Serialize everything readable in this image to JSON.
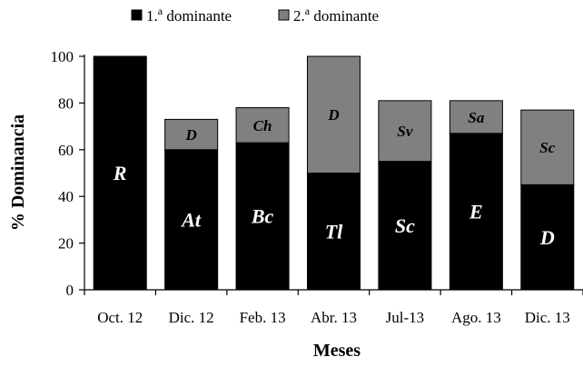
{
  "chart_data": {
    "type": "bar",
    "stacked": true,
    "categories": [
      "Oct. 12",
      "Dic. 12",
      "Feb. 13",
      "Abr. 13",
      "Jul-13",
      "Ago. 13",
      "Dic. 13"
    ],
    "series": [
      {
        "name": "1.ª dominante",
        "color": "#000000",
        "values": [
          100,
          60,
          63,
          50,
          55,
          67,
          45
        ],
        "labels": [
          "R",
          "At",
          "Bc",
          "Tl",
          "Sc",
          "E",
          "D"
        ]
      },
      {
        "name": "2.ª dominante",
        "color": "#808080",
        "values": [
          0,
          13,
          15,
          50,
          26,
          14,
          32
        ],
        "labels": [
          "",
          "D",
          "Ch",
          "D",
          "Sv",
          "Sa",
          "Sc"
        ]
      }
    ],
    "legend": [
      {
        "prefix": "1.",
        "sup": "a",
        "suffix": " dominante"
      },
      {
        "prefix": "2.",
        "sup": "a",
        "suffix": " dominante"
      }
    ],
    "ylabel": "% Dominancia",
    "xlabel": "Meses",
    "ylim": [
      0,
      100
    ],
    "yticks": [
      0,
      20,
      40,
      60,
      80,
      100
    ],
    "grid": false,
    "legend_position": "top"
  }
}
